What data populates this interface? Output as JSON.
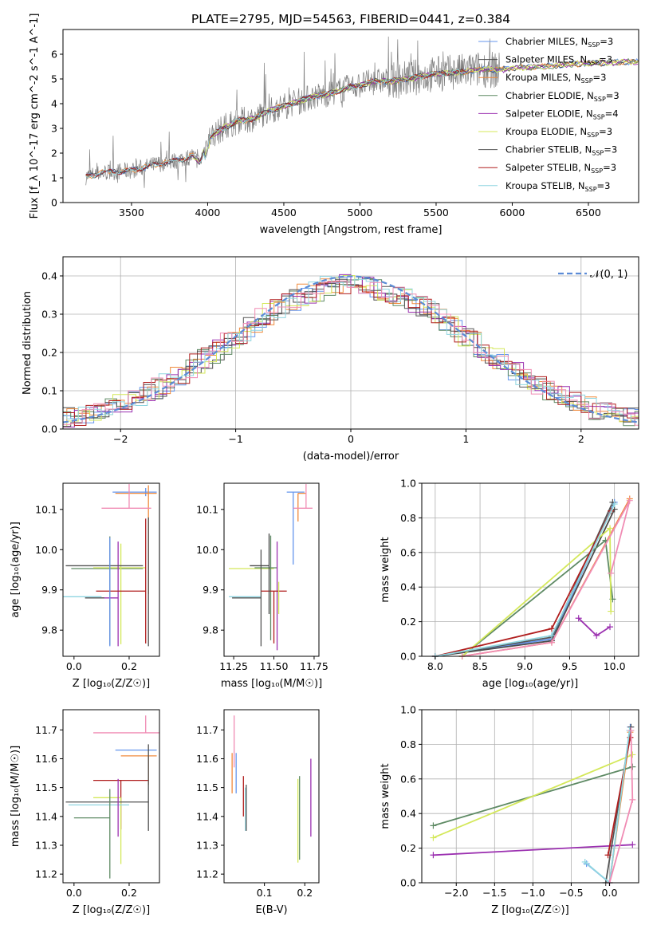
{
  "figure": {
    "title": "PLATE=2795, MJD=54563, FIBERID=0441, z=0.384"
  },
  "colors": {
    "Chabrier MILES": "#6495ed",
    "Salpeter MILES": "#4b4b4b",
    "Kroupa MILES": "#f08a3c",
    "Chabrier ELODIE": "#5e8a64",
    "Salpeter ELODIE": "#9b30b0",
    "Kroupa ELODIE": "#d4e85a",
    "Chabrier STELIB": "#555555",
    "Salpeter STELIB": "#b01e1e",
    "Kroupa STELIB": "#8fd5e0",
    "pink": "#f08cb4",
    "data": "#808080",
    "gauss": "#5b8bd6"
  },
  "chart_data": [
    {
      "id": "spectrum",
      "type": "line",
      "xlabel": "wavelength [Angstrom, rest frame]",
      "ylabel": "Flux [f_λ 10^-17 erg cm^-2 s^-1 A^-1]",
      "xlim": [
        3050,
        6830
      ],
      "ylim": [
        0,
        7.0
      ],
      "xticks": [
        "3500",
        "4000",
        "4500",
        "5000",
        "5500",
        "6000",
        "6500"
      ],
      "yticks": [
        "0",
        "1",
        "2",
        "3",
        "4",
        "5",
        "6"
      ],
      "legend": [
        {
          "base": "Chabrier MILES, N",
          "sub": "SSP",
          "tail": "=3"
        },
        {
          "base": "Salpeter MILES, N",
          "sub": "SSP",
          "tail": "=3"
        },
        {
          "base": "Kroupa MILES, N",
          "sub": "SSP",
          "tail": "=3"
        },
        {
          "base": "Chabrier ELODIE, N",
          "sub": "SSP",
          "tail": "=3"
        },
        {
          "base": "Salpeter ELODIE, N",
          "sub": "SSP",
          "tail": "=4"
        },
        {
          "base": "Kroupa ELODIE, N",
          "sub": "SSP",
          "tail": "=3"
        },
        {
          "base": "Chabrier STELIB, N",
          "sub": "SSP",
          "tail": "=3"
        },
        {
          "base": "Salpeter STELIB, N",
          "sub": "SSP",
          "tail": "=3"
        },
        {
          "base": "Kroupa STELIB, N",
          "sub": "SSP",
          "tail": "=3"
        }
      ],
      "continuum": [
        [
          3200,
          1.05
        ],
        [
          3300,
          1.2
        ],
        [
          3400,
          1.25
        ],
        [
          3500,
          1.3
        ],
        [
          3600,
          1.45
        ],
        [
          3700,
          1.6
        ],
        [
          3800,
          1.7
        ],
        [
          3900,
          1.9
        ],
        [
          3950,
          1.6
        ],
        [
          4000,
          2.6
        ],
        [
          4100,
          3.0
        ],
        [
          4200,
          3.3
        ],
        [
          4300,
          3.4
        ],
        [
          4400,
          3.7
        ],
        [
          4500,
          3.9
        ],
        [
          4600,
          4.1
        ],
        [
          4700,
          4.3
        ],
        [
          4800,
          4.4
        ],
        [
          4900,
          4.6
        ],
        [
          5000,
          4.75
        ],
        [
          5100,
          4.9
        ],
        [
          5200,
          4.9
        ],
        [
          5300,
          5.0
        ],
        [
          5400,
          5.1
        ],
        [
          5500,
          5.2
        ],
        [
          5600,
          5.25
        ],
        [
          5700,
          5.3
        ],
        [
          5800,
          5.4
        ],
        [
          5900,
          5.35
        ],
        [
          6000,
          5.45
        ],
        [
          6200,
          5.5
        ],
        [
          6400,
          5.6
        ],
        [
          6600,
          5.65
        ],
        [
          6830,
          5.7
        ]
      ]
    },
    {
      "id": "residuals",
      "type": "histogram",
      "xlabel": "(data-model)/error",
      "ylabel": "Normed distribution",
      "xlim": [
        -2.5,
        2.5
      ],
      "ylim": [
        0,
        0.45
      ],
      "xticks": [
        "−2",
        "−1",
        "0",
        "1",
        "2"
      ],
      "yticks": [
        "0.0",
        "0.1",
        "0.2",
        "0.3",
        "0.4"
      ],
      "legend_label": "𝒩(0, 1)",
      "grid": true
    },
    {
      "id": "age-vs-Z",
      "type": "scatter",
      "xlabel": "Z [log₁₀(Z/Z☉)]",
      "ylabel": "age  [log₁₀(age/yr)]",
      "xlim": [
        -0.04,
        0.31
      ],
      "ylim": [
        9.735,
        10.165
      ],
      "xticks": [
        "0.0",
        "0.2"
      ],
      "yticks": [
        "9.8",
        "9.9",
        "10.0",
        "10.1"
      ]
    },
    {
      "id": "age-vs-mass",
      "type": "scatter",
      "xlabel": "mass [log₁₀(M/M☉)]",
      "ylabel": "",
      "xlim": [
        11.19,
        11.78
      ],
      "ylim": [
        9.735,
        10.165
      ],
      "xticks": [
        "11.25",
        "11.50",
        "11.75"
      ],
      "yticks": [
        "9.8",
        "9.9",
        "10.0",
        "10.1"
      ]
    },
    {
      "id": "weight-vs-age",
      "type": "line",
      "xlabel": "age  [log₁₀(age/yr)]",
      "ylabel": "mass weight",
      "xlim": [
        7.85,
        10.27
      ],
      "ylim": [
        0,
        1.0
      ],
      "xticks": [
        "8.0",
        "8.5",
        "9.0",
        "9.5",
        "10.0"
      ],
      "yticks": [
        "0.0",
        "0.2",
        "0.4",
        "0.6",
        "0.8",
        "1.0"
      ],
      "grid": true,
      "series": [
        {
          "c": "Chabrier MILES",
          "pts": [
            [
              8.0,
              0.0
            ],
            [
              9.3,
              0.1
            ],
            [
              10.0,
              0.89
            ]
          ]
        },
        {
          "c": "Salpeter MILES",
          "pts": [
            [
              8.0,
              0.0
            ],
            [
              9.3,
              0.09
            ],
            [
              10.0,
              0.85
            ]
          ]
        },
        {
          "c": "Kroupa MILES",
          "pts": [
            [
              8.3,
              0.0
            ],
            [
              9.3,
              0.08
            ],
            [
              10.17,
              0.91
            ]
          ]
        },
        {
          "c": "Chabrier ELODIE",
          "pts": [
            [
              8.3,
              0.0
            ],
            [
              9.9,
              0.67
            ],
            [
              9.98,
              0.33
            ]
          ]
        },
        {
          "c": "Salpeter ELODIE",
          "pts": [
            [
              9.6,
              0.22
            ],
            [
              9.8,
              0.12
            ],
            [
              9.95,
              0.17
            ]
          ]
        },
        {
          "c": "Kroupa ELODIE",
          "pts": [
            [
              8.3,
              0.0
            ],
            [
              9.95,
              0.74
            ],
            [
              9.96,
              0.26
            ]
          ]
        },
        {
          "c": "Chabrier STELIB",
          "pts": [
            [
              8.0,
              0.0
            ],
            [
              9.3,
              0.11
            ],
            [
              9.98,
              0.89
            ]
          ]
        },
        {
          "c": "Salpeter STELIB",
          "pts": [
            [
              8.0,
              0.0
            ],
            [
              9.3,
              0.16
            ],
            [
              9.96,
              0.84
            ]
          ]
        },
        {
          "c": "Kroupa STELIB",
          "pts": [
            [
              8.0,
              0.0
            ],
            [
              9.3,
              0.12
            ],
            [
              10.0,
              0.88
            ]
          ]
        },
        {
          "c": "pink",
          "pts": [
            [
              8.3,
              0.0
            ],
            [
              9.3,
              0.08
            ],
            [
              10.17,
              0.9
            ],
            [
              9.96,
              0.48
            ]
          ]
        }
      ]
    },
    {
      "id": "mass-vs-Z",
      "type": "scatter",
      "xlabel": "Z [log₁₀(Z/Z☉)]",
      "ylabel": "mass [log₁₀(M/M☉)]",
      "xlim": [
        -0.04,
        0.31
      ],
      "ylim": [
        11.17,
        11.77
      ],
      "xticks": [
        "0.0",
        "0.2"
      ],
      "yticks": [
        "11.2",
        "11.3",
        "11.4",
        "11.5",
        "11.6",
        "11.7"
      ]
    },
    {
      "id": "mass-vs-EBV",
      "type": "scatter",
      "xlabel": "E(B-V)",
      "ylabel": "",
      "xlim": [
        0.0,
        0.235
      ],
      "ylim": [
        11.17,
        11.77
      ],
      "xticks": [
        "0.1",
        "0.2"
      ],
      "yticks": [
        "11.2",
        "11.3",
        "11.4",
        "11.5",
        "11.6",
        "11.7"
      ]
    },
    {
      "id": "weight-vs-Z",
      "type": "line",
      "xlabel": "Z [log₁₀(Z/Z☉)]",
      "ylabel": "mass weight",
      "xlim": [
        -2.45,
        0.38
      ],
      "ylim": [
        0,
        1.0
      ],
      "xticks": [
        "−2.0",
        "−1.5",
        "−1.0",
        "−0.5",
        "0.0"
      ],
      "yticks": [
        "0.0",
        "0.2",
        "0.4",
        "0.6",
        "0.8",
        "1.0"
      ],
      "grid": true,
      "series": [
        {
          "c": "Chabrier MILES",
          "pts": [
            [
              -0.3,
              0.11
            ],
            [
              0.0,
              0.0
            ],
            [
              0.27,
              0.9
            ]
          ]
        },
        {
          "c": "Kroupa MILES",
          "pts": [
            [
              0.0,
              0.0
            ],
            [
              0.27,
              0.87
            ]
          ]
        },
        {
          "c": "Chabrier ELODIE",
          "pts": [
            [
              -2.3,
              0.33
            ],
            [
              0.3,
              0.67
            ]
          ]
        },
        {
          "c": "Salpeter ELODIE",
          "pts": [
            [
              -2.3,
              0.16
            ],
            [
              0.3,
              0.22
            ]
          ]
        },
        {
          "c": "Kroupa ELODIE",
          "pts": [
            [
              -2.3,
              0.26
            ],
            [
              0.3,
              0.74
            ]
          ]
        },
        {
          "c": "Chabrier STELIB",
          "pts": [
            [
              -0.05,
              0.0
            ],
            [
              0.28,
              0.9
            ]
          ]
        },
        {
          "c": "Salpeter STELIB",
          "pts": [
            [
              -0.02,
              0.16
            ],
            [
              0.27,
              0.84
            ]
          ]
        },
        {
          "c": "Kroupa STELIB",
          "pts": [
            [
              -0.32,
              0.12
            ],
            [
              0.0,
              0.0
            ],
            [
              0.26,
              0.88
            ]
          ]
        },
        {
          "c": "pink",
          "pts": [
            [
              0.0,
              0.0
            ],
            [
              0.3,
              0.48
            ],
            [
              0.28,
              0.88
            ]
          ]
        }
      ]
    }
  ]
}
